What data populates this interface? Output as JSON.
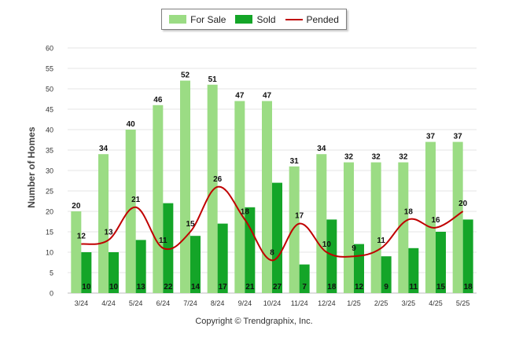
{
  "chart_data": {
    "type": "bar",
    "categories": [
      "3/24",
      "4/24",
      "5/24",
      "6/24",
      "7/24",
      "8/24",
      "9/24",
      "10/24",
      "11/24",
      "12/24",
      "1/25",
      "2/25",
      "3/25",
      "4/25",
      "5/25"
    ],
    "series": [
      {
        "name": "For Sale",
        "type": "bar",
        "color": "#9bdc84",
        "values": [
          20,
          34,
          40,
          46,
          52,
          51,
          47,
          47,
          31,
          34,
          32,
          32,
          32,
          37,
          37
        ]
      },
      {
        "name": "Sold",
        "type": "bar",
        "color": "#14a528",
        "values": [
          10,
          10,
          13,
          22,
          14,
          17,
          21,
          27,
          7,
          18,
          12,
          9,
          11,
          15,
          18
        ]
      },
      {
        "name": "Pended",
        "type": "line",
        "color": "#c00000",
        "values": [
          12,
          13,
          21,
          11,
          15,
          26,
          18,
          8,
          17,
          10,
          9,
          11,
          18,
          16,
          20
        ]
      }
    ],
    "ylabel": "Number of Homes",
    "ylim": [
      0,
      60
    ],
    "ytick_step": 5,
    "grid": true,
    "legend_position": "top-center"
  },
  "legend": {
    "items": [
      {
        "label": "For Sale",
        "color": "#9bdc84",
        "kind": "bar"
      },
      {
        "label": "Sold",
        "color": "#14a528",
        "kind": "bar"
      },
      {
        "label": "Pended",
        "color": "#c00000",
        "kind": "line"
      }
    ]
  },
  "footer": {
    "copyright": "Copyright © Trendgraphix, Inc."
  }
}
